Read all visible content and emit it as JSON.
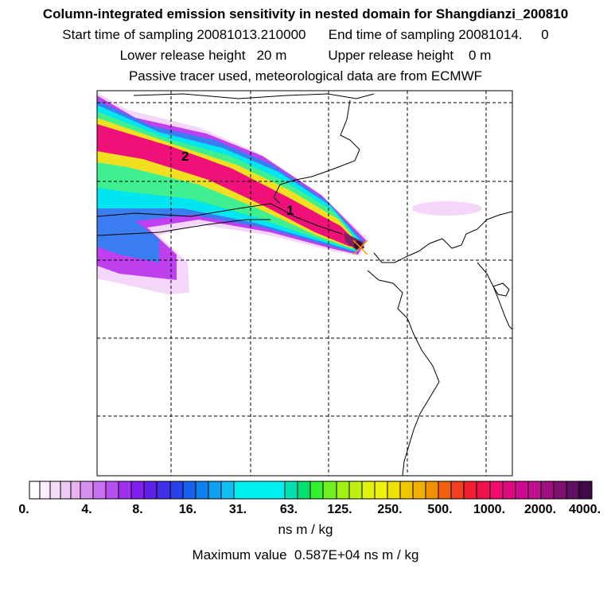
{
  "header": {
    "title": "Column-integrated emission sensitivity in nested domain for Shangdianzi_200810",
    "sampling_line": "Start time of sampling 20081013.210000      End time of sampling 20081014.     0",
    "release_line": "Lower release height   20 m           Upper release height    0 m",
    "tracer_line": "Passive tracer used, meteorological data are from ECMWF"
  },
  "map": {
    "labels": [
      {
        "id": "label-1",
        "text": "1"
      },
      {
        "id": "label-2",
        "text": "2"
      }
    ]
  },
  "colorbar": {
    "tick_labels": [
      "0.",
      "4.",
      "8.",
      "16.",
      "31.",
      "63.",
      "125.",
      "250.",
      "500.",
      "1000.",
      "2000.",
      "4000."
    ],
    "unit": "ns m / kg"
  },
  "footer": {
    "max_value_text": "Maximum value  0.587E+04 ns m / kg"
  }
}
